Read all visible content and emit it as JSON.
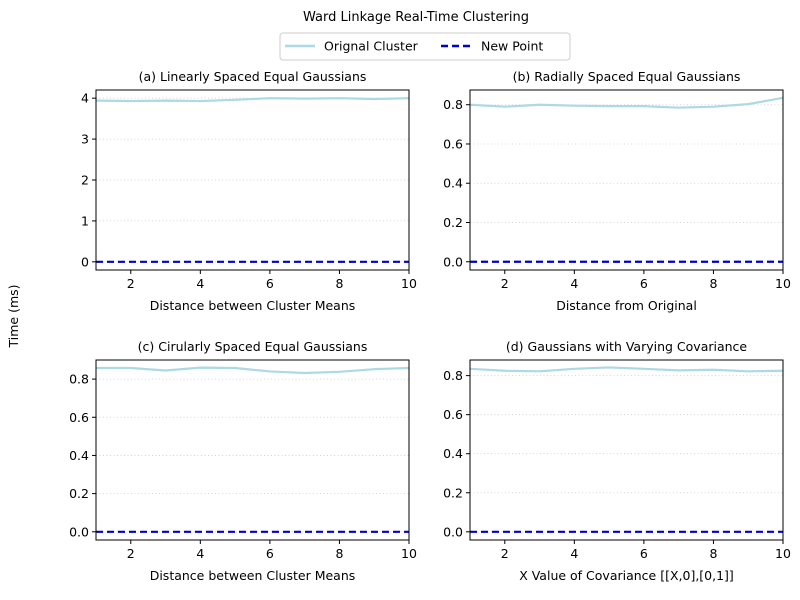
{
  "figure": {
    "title": "Ward Linkage Real-Time Clustering",
    "ylabel": "Time (ms)"
  },
  "legend": {
    "placement": "top-center",
    "entries": [
      {
        "label": "Orignal Cluster",
        "color": "#add8e6",
        "style": "solid"
      },
      {
        "label": "New Point",
        "color": "#0000cd",
        "style": "dashed"
      }
    ]
  },
  "chart_data": [
    {
      "type": "line",
      "title": "(a) Linearly Spaced Equal Gaussians",
      "xlabel": "Distance between Cluster Means",
      "ylabel": "",
      "xlim": [
        1,
        10
      ],
      "ylim": [
        -0.2,
        4.2
      ],
      "xticks": [
        2,
        4,
        6,
        8,
        10
      ],
      "yticks": [
        0,
        1,
        2,
        3,
        4
      ],
      "ytick_labels": [
        "0",
        "1",
        "2",
        "3",
        "4"
      ],
      "grid": "y-dotted",
      "x": [
        1,
        2,
        3,
        4,
        5,
        6,
        7,
        8,
        9,
        10
      ],
      "series": [
        {
          "name": "Orignal Cluster",
          "color": "#add8e6",
          "values": [
            3.94,
            3.93,
            3.94,
            3.93,
            3.96,
            4.0,
            3.99,
            4.0,
            3.98,
            4.0
          ]
        },
        {
          "name": "New Point",
          "color": "#0000cd",
          "values": [
            0.0,
            0.0,
            0.0,
            0.0,
            0.0,
            0.0,
            0.0,
            0.0,
            0.0,
            0.0
          ]
        }
      ]
    },
    {
      "type": "line",
      "title": "(b) Radially Spaced Equal Gaussians",
      "xlabel": "Distance from Original",
      "ylabel": "",
      "xlim": [
        1,
        10
      ],
      "ylim": [
        -0.042,
        0.875
      ],
      "xticks": [
        2,
        4,
        6,
        8,
        10
      ],
      "yticks": [
        0,
        0.2,
        0.4,
        0.6,
        0.8
      ],
      "ytick_labels": [
        "0.0",
        "0.2",
        "0.4",
        "0.6",
        "0.8"
      ],
      "grid": "y-dotted",
      "x": [
        1,
        2,
        3,
        4,
        5,
        6,
        7,
        8,
        9,
        10
      ],
      "series": [
        {
          "name": "Orignal Cluster",
          "color": "#add8e6",
          "values": [
            0.8,
            0.79,
            0.8,
            0.795,
            0.793,
            0.793,
            0.785,
            0.79,
            0.803,
            0.835
          ]
        },
        {
          "name": "New Point",
          "color": "#0000cd",
          "values": [
            0.0,
            0.0,
            0.0,
            0.0,
            0.0,
            0.0,
            0.0,
            0.0,
            0.0,
            0.0
          ]
        }
      ]
    },
    {
      "type": "line",
      "title": "(c) Cirularly Spaced Equal Gaussians",
      "xlabel": "Distance between Cluster Means",
      "ylabel": "",
      "xlim": [
        1,
        10
      ],
      "ylim": [
        -0.043,
        0.9
      ],
      "xticks": [
        2,
        4,
        6,
        8,
        10
      ],
      "yticks": [
        0,
        0.2,
        0.4,
        0.6,
        0.8
      ],
      "ytick_labels": [
        "0.0",
        "0.2",
        "0.4",
        "0.6",
        "0.8"
      ],
      "grid": "y-dotted",
      "x": [
        1,
        2,
        3,
        4,
        5,
        6,
        7,
        8,
        9,
        10
      ],
      "series": [
        {
          "name": "Orignal Cluster",
          "color": "#add8e6",
          "values": [
            0.858,
            0.858,
            0.845,
            0.86,
            0.858,
            0.84,
            0.832,
            0.838,
            0.852,
            0.858
          ]
        },
        {
          "name": "New Point",
          "color": "#0000cd",
          "values": [
            0.0,
            0.0,
            0.0,
            0.0,
            0.0,
            0.0,
            0.0,
            0.0,
            0.0,
            0.0
          ]
        }
      ]
    },
    {
      "type": "line",
      "title": "(d) Gaussians with Varying Covariance",
      "xlabel": "X Value of Covariance [[X,0],[0,1]]",
      "ylabel": "",
      "xlim": [
        1,
        10
      ],
      "ylim": [
        -0.042,
        0.88
      ],
      "xticks": [
        2,
        4,
        6,
        8,
        10
      ],
      "yticks": [
        0,
        0.2,
        0.4,
        0.6,
        0.8
      ],
      "ytick_labels": [
        "0.0",
        "0.2",
        "0.4",
        "0.6",
        "0.8"
      ],
      "grid": "y-dotted",
      "x": [
        1,
        2,
        3,
        4,
        5,
        6,
        7,
        8,
        9,
        10
      ],
      "series": [
        {
          "name": "Orignal Cluster",
          "color": "#add8e6",
          "values": [
            0.835,
            0.825,
            0.822,
            0.835,
            0.842,
            0.835,
            0.827,
            0.83,
            0.822,
            0.825
          ]
        },
        {
          "name": "New Point",
          "color": "#0000cd",
          "values": [
            0.0,
            0.0,
            0.0,
            0.0,
            0.0,
            0.0,
            0.0,
            0.0,
            0.0,
            0.0
          ]
        }
      ]
    }
  ]
}
